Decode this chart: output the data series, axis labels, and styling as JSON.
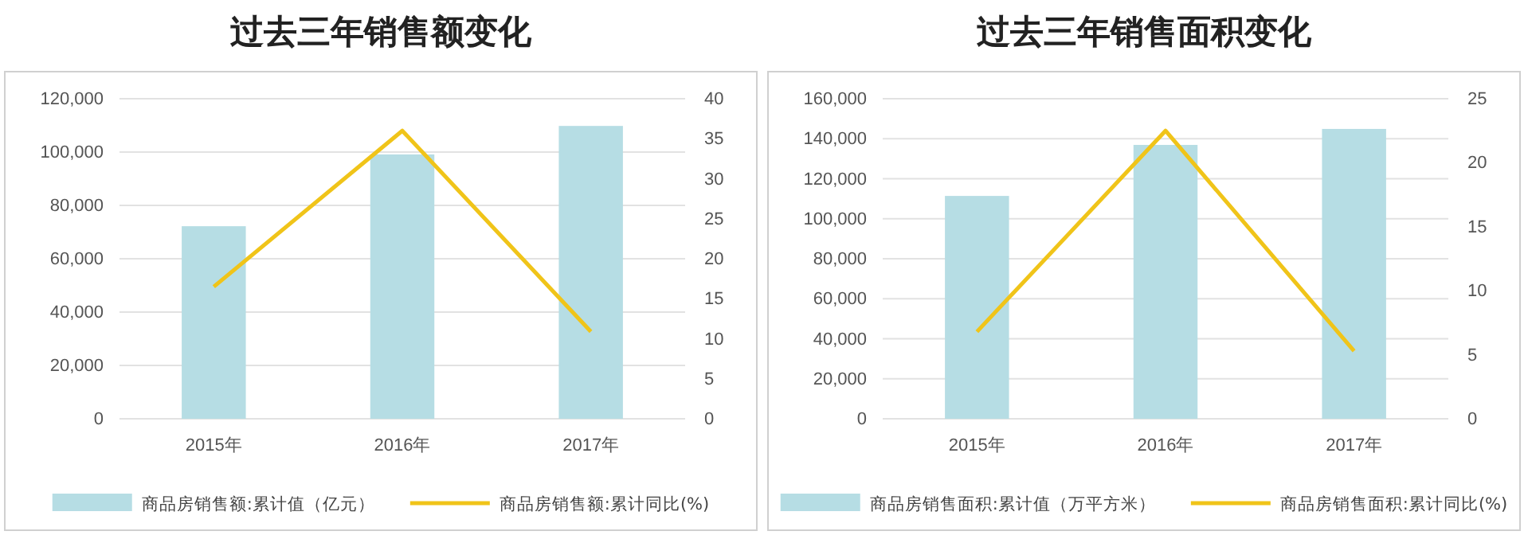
{
  "chart_data": [
    {
      "type": "bar",
      "title": "过去三年销售额变化",
      "categories": [
        "2015年",
        "2016年",
        "2017年"
      ],
      "series": [
        {
          "name": "商品房销售额:累计值（亿元）",
          "color": "#b6dde4",
          "values": [
            72200,
            99100,
            109800
          ]
        },
        {
          "name": "商品房销售额:累计同比(%)",
          "type": "line",
          "axis": "y2",
          "color": "#f0c419",
          "values": [
            16.5,
            36.0,
            10.9
          ]
        }
      ],
      "ylim": [
        0,
        120000
      ],
      "yticks": [
        0,
        {
          "value": 20000,
          "label": "20,000"
        },
        {
          "value": 40000,
          "label": "40,000"
        },
        {
          "value": 60000,
          "label": "60,000"
        },
        {
          "value": 80000,
          "label": "80,000"
        },
        {
          "value": 100000,
          "label": "100,000"
        },
        {
          "value": 120000,
          "label": "120,000"
        }
      ],
      "y2lim": [
        0,
        40
      ],
      "y2ticks": [
        0,
        5,
        10,
        15,
        20,
        25,
        30,
        35,
        40
      ],
      "grid": "y",
      "legend": "bottom",
      "marker": "none",
      "line_style": "solid"
    },
    {
      "type": "bar",
      "title": "过去三年销售面积变化",
      "categories": [
        "2015年",
        "2016年",
        "2017年"
      ],
      "series": [
        {
          "name": "商品房销售面积:累计值（万平方米）",
          "color": "#b6dde4",
          "values": [
            111400,
            136900,
            144900
          ]
        },
        {
          "name": "商品房销售面积:累计同比(%)",
          "type": "line",
          "axis": "y2",
          "color": "#f0c419",
          "values": [
            6.8,
            22.5,
            5.3
          ]
        }
      ],
      "ylim": [
        0,
        160000
      ],
      "yticks": [
        0,
        {
          "value": 20000,
          "label": "20,000"
        },
        {
          "value": 40000,
          "label": "40,000"
        },
        {
          "value": 60000,
          "label": "60,000"
        },
        {
          "value": 80000,
          "label": "80,000"
        },
        {
          "value": 100000,
          "label": "100,000"
        },
        {
          "value": 120000,
          "label": "120,000"
        },
        {
          "value": 140000,
          "label": "140,000"
        },
        {
          "value": 160000,
          "label": "160,000"
        }
      ],
      "y2lim": [
        0,
        25
      ],
      "y2ticks": [
        0,
        5,
        10,
        15,
        20,
        25
      ],
      "grid": "y",
      "legend": "bottom",
      "marker": "none",
      "line_style": "solid"
    }
  ]
}
